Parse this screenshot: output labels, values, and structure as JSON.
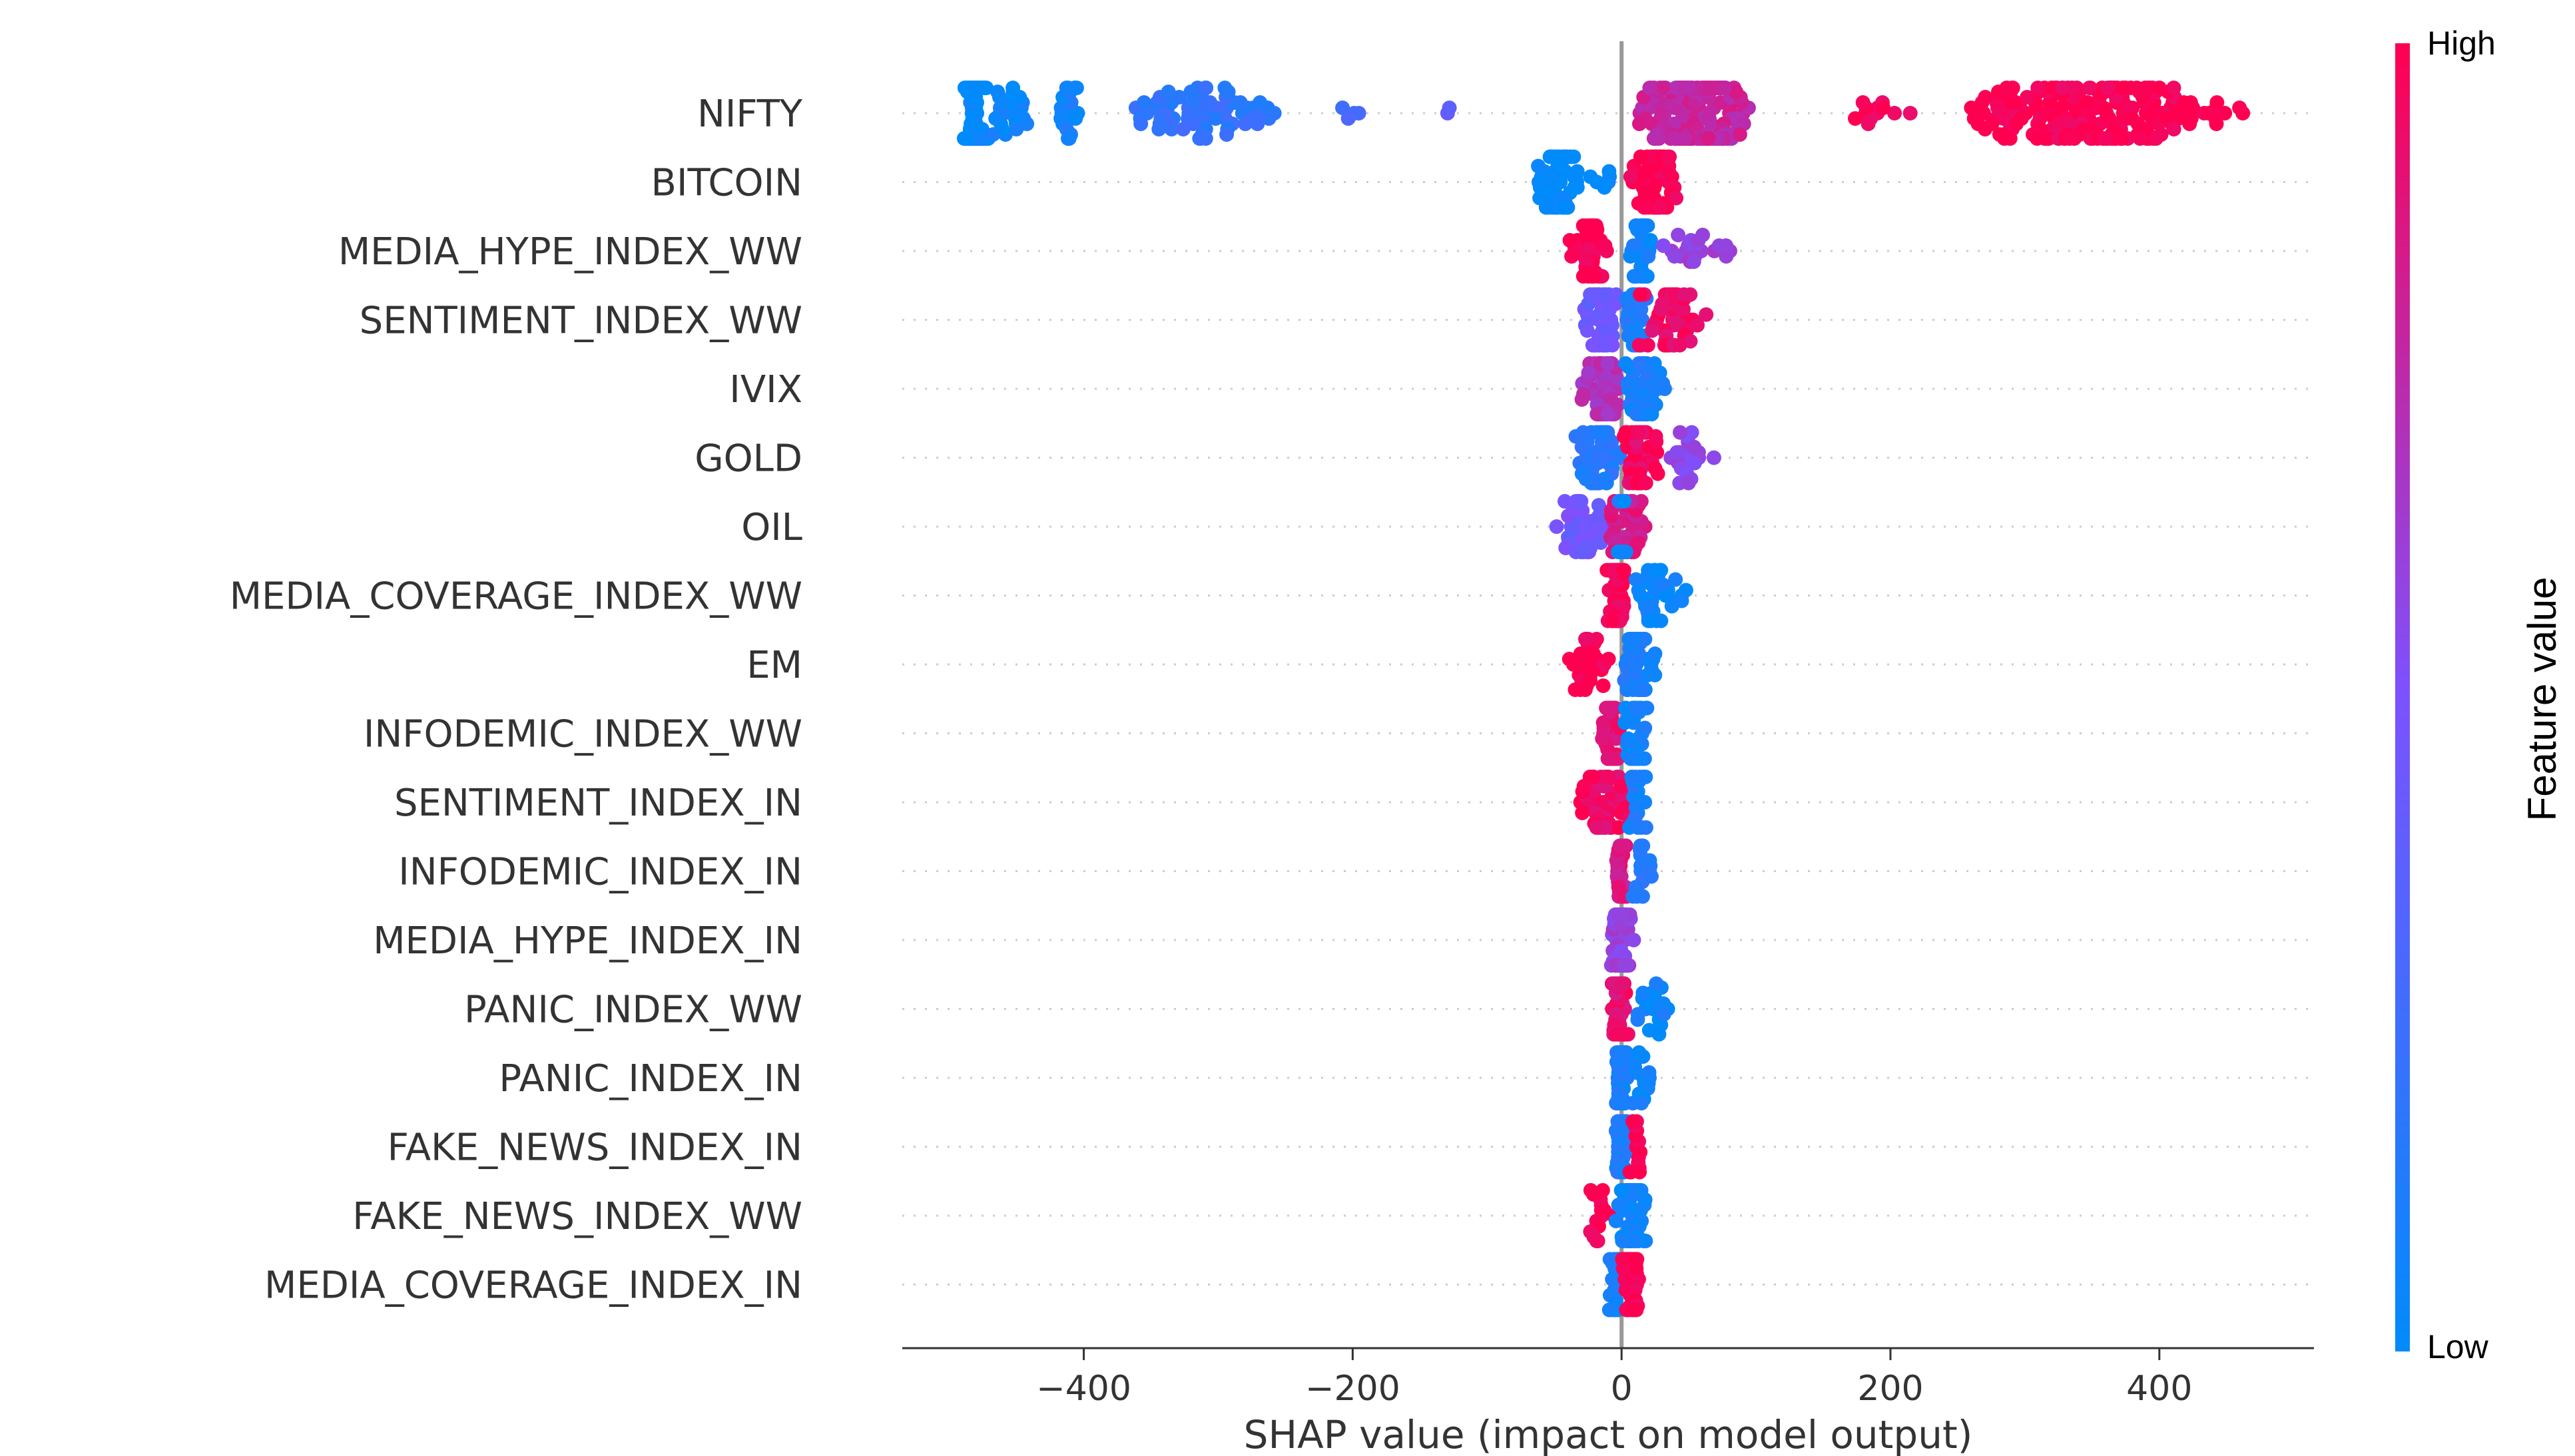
{
  "chart_data": {
    "type": "scatter",
    "subtype": "shap-beeswarm-summary",
    "xlabel": "SHAP value (impact on model output)",
    "ylabel": "",
    "xlim": [
      -535,
      515
    ],
    "xticks": [
      -400,
      -200,
      0,
      200,
      400
    ],
    "xtick_labels": [
      "−400",
      "−200",
      "0",
      "200",
      "400"
    ],
    "colorbar": {
      "title": "Feature value",
      "high_label": "High",
      "low_label": "Low",
      "low_color": "#008bfb",
      "high_color": "#ff0051"
    },
    "features": [
      {
        "name": "NIFTY",
        "groups": [
          {
            "from": -490,
            "to": -470,
            "n": 90,
            "fv": 0.0
          },
          {
            "from": -470,
            "to": -440,
            "n": 25,
            "fv": 0.05
          },
          {
            "from": -420,
            "to": -400,
            "n": 20,
            "fv": 0.08
          },
          {
            "from": -370,
            "to": -250,
            "n": 70,
            "fv": 0.2
          },
          {
            "from": -210,
            "to": -190,
            "n": 4,
            "fv": 0.3
          },
          {
            "from": -130,
            "to": -125,
            "n": 2,
            "fv": 0.35
          },
          {
            "from": 10,
            "to": 100,
            "n": 170,
            "fv": 0.78
          },
          {
            "from": 160,
            "to": 220,
            "n": 12,
            "fv": 1.0
          },
          {
            "from": 250,
            "to": 470,
            "n": 200,
            "fv": 1.0
          }
        ]
      },
      {
        "name": "BITCOIN",
        "groups": [
          {
            "from": -65,
            "to": -30,
            "n": 60,
            "fv": 0.0
          },
          {
            "from": -25,
            "to": -5,
            "n": 6,
            "fv": 0.05
          },
          {
            "from": 5,
            "to": 45,
            "n": 60,
            "fv": 1.0
          }
        ]
      },
      {
        "name": "MEDIA_HYPE_INDEX_WW",
        "groups": [
          {
            "from": -40,
            "to": -10,
            "n": 40,
            "fv": 1.0
          },
          {
            "from": 5,
            "to": 25,
            "n": 40,
            "fv": 0.05
          },
          {
            "from": 25,
            "to": 85,
            "n": 20,
            "fv": 0.6
          }
        ]
      },
      {
        "name": "SENTIMENT_INDEX_WW",
        "groups": [
          {
            "from": -30,
            "to": 0,
            "n": 50,
            "fv": 0.45
          },
          {
            "from": 0,
            "to": 20,
            "n": 30,
            "fv": 0.1
          },
          {
            "from": 10,
            "to": 65,
            "n": 50,
            "fv": 0.95
          }
        ]
      },
      {
        "name": "IVIX",
        "groups": [
          {
            "from": -30,
            "to": 0,
            "n": 50,
            "fv": 0.7
          },
          {
            "from": 0,
            "to": 35,
            "n": 50,
            "fv": 0.1
          }
        ]
      },
      {
        "name": "GOLD",
        "groups": [
          {
            "from": -35,
            "to": 0,
            "n": 50,
            "fv": 0.15
          },
          {
            "from": 0,
            "to": 30,
            "n": 50,
            "fv": 0.95
          },
          {
            "from": 30,
            "to": 70,
            "n": 20,
            "fv": 0.55
          }
        ]
      },
      {
        "name": "OIL",
        "groups": [
          {
            "from": -50,
            "to": -10,
            "n": 40,
            "fv": 0.45
          },
          {
            "from": -10,
            "to": 20,
            "n": 50,
            "fv": 0.85
          },
          {
            "from": -5,
            "to": 5,
            "n": 20,
            "fv": 0.05
          }
        ]
      },
      {
        "name": "MEDIA_COVERAGE_INDEX_WW",
        "groups": [
          {
            "from": -12,
            "to": 5,
            "n": 50,
            "fv": 1.0
          },
          {
            "from": 5,
            "to": 50,
            "n": 35,
            "fv": 0.05
          }
        ]
      },
      {
        "name": "EM",
        "groups": [
          {
            "from": -40,
            "to": -5,
            "n": 30,
            "fv": 1.0
          },
          {
            "from": -5,
            "to": 30,
            "n": 50,
            "fv": 0.1
          }
        ]
      },
      {
        "name": "INFODEMIC_INDEX_WW",
        "groups": [
          {
            "from": -15,
            "to": 0,
            "n": 40,
            "fv": 0.9
          },
          {
            "from": 0,
            "to": 20,
            "n": 40,
            "fv": 0.05
          }
        ]
      },
      {
        "name": "SENTIMENT_INDEX_IN",
        "groups": [
          {
            "from": -35,
            "to": 10,
            "n": 50,
            "fv": 0.95
          },
          {
            "from": 5,
            "to": 20,
            "n": 20,
            "fv": 0.1
          }
        ]
      },
      {
        "name": "INFODEMIC_INDEX_IN",
        "groups": [
          {
            "from": -5,
            "to": 5,
            "n": 50,
            "fv": 0.85
          },
          {
            "from": 5,
            "to": 25,
            "n": 20,
            "fv": 0.15
          }
        ]
      },
      {
        "name": "MEDIA_HYPE_INDEX_IN",
        "groups": [
          {
            "from": -10,
            "to": 10,
            "n": 60,
            "fv": 0.6
          }
        ]
      },
      {
        "name": "PANIC_INDEX_WW",
        "groups": [
          {
            "from": -8,
            "to": 5,
            "n": 50,
            "fv": 0.9
          },
          {
            "from": 5,
            "to": 40,
            "n": 20,
            "fv": 0.05
          }
        ]
      },
      {
        "name": "PANIC_INDEX_IN",
        "groups": [
          {
            "from": -5,
            "to": 5,
            "n": 50,
            "fv": 0.1
          },
          {
            "from": 5,
            "to": 28,
            "n": 15,
            "fv": 0.05
          }
        ]
      },
      {
        "name": "FAKE_NEWS_INDEX_IN",
        "groups": [
          {
            "from": -5,
            "to": 5,
            "n": 50,
            "fv": 0.1
          },
          {
            "from": 5,
            "to": 15,
            "n": 15,
            "fv": 1.0
          }
        ]
      },
      {
        "name": "FAKE_NEWS_INDEX_WW",
        "groups": [
          {
            "from": -25,
            "to": -5,
            "n": 15,
            "fv": 1.0
          },
          {
            "from": -5,
            "to": 20,
            "n": 50,
            "fv": 0.05
          }
        ]
      },
      {
        "name": "MEDIA_COVERAGE_INDEX_IN",
        "groups": [
          {
            "from": -10,
            "to": 0,
            "n": 20,
            "fv": 0.1
          },
          {
            "from": 0,
            "to": 15,
            "n": 40,
            "fv": 1.0
          }
        ]
      }
    ]
  }
}
